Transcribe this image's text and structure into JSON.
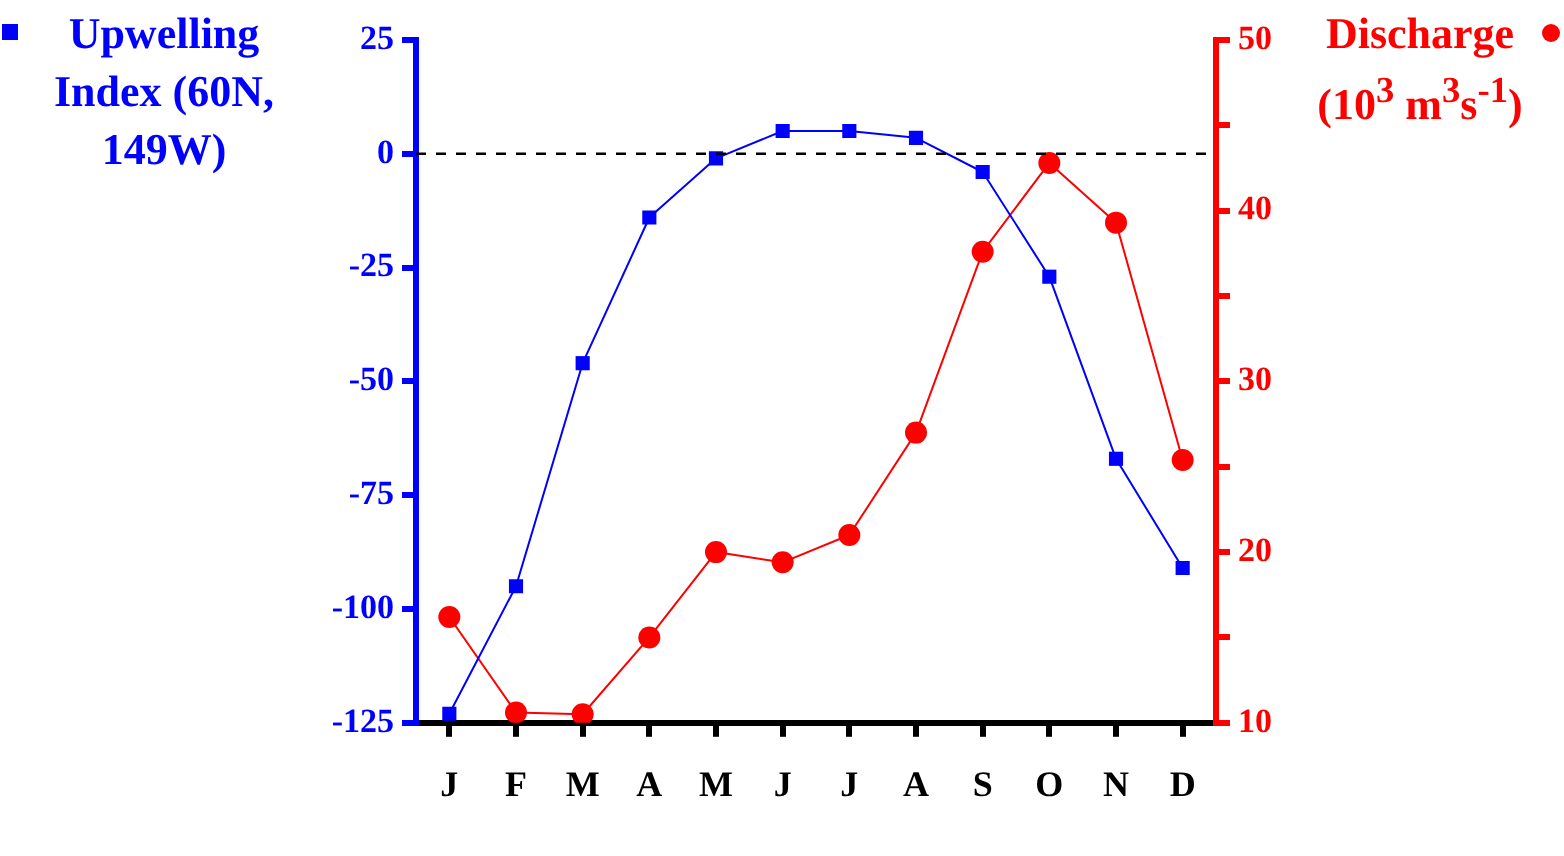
{
  "chart_data": {
    "type": "line",
    "categories": [
      "J",
      "F",
      "M",
      "A",
      "M",
      "J",
      "J",
      "A",
      "S",
      "O",
      "N",
      "D"
    ],
    "ylabel": "Upwelling Index (60N, 149W)",
    "y2label": "Discharge (10$^{3}$ m$^{3}$s$^{-1}$)",
    "ylim": [
      -125,
      25
    ],
    "yticks": [
      -125,
      -100,
      -75,
      -50,
      -25,
      0,
      25
    ],
    "y2lim": [
      10,
      50
    ],
    "y2ticks": [
      10,
      {
        "value": 15,
        "label": null
      },
      20,
      {
        "value": 25,
        "label": null
      },
      30,
      {
        "value": 35,
        "label": null
      },
      40,
      {
        "value": 45,
        "label": null
      },
      50
    ],
    "grid": false,
    "ref_lines": [
      {
        "axis": "y",
        "value": 0,
        "color": "#000000",
        "line_style": "dashed"
      }
    ],
    "series": [
      {
        "color": "#0000ff",
        "marker": "square",
        "values": [
          -123,
          -95,
          -46,
          -14,
          -1,
          5,
          5,
          3.5,
          -4,
          -27,
          -67,
          -91
        ]
      },
      {
        "color": "#ff0000",
        "marker": "circle",
        "axis": "y2",
        "values": [
          16.2,
          10.6,
          10.5,
          15,
          20,
          19.4,
          21,
          27,
          37.6,
          42.8,
          39.3,
          25.4
        ]
      }
    ]
  }
}
